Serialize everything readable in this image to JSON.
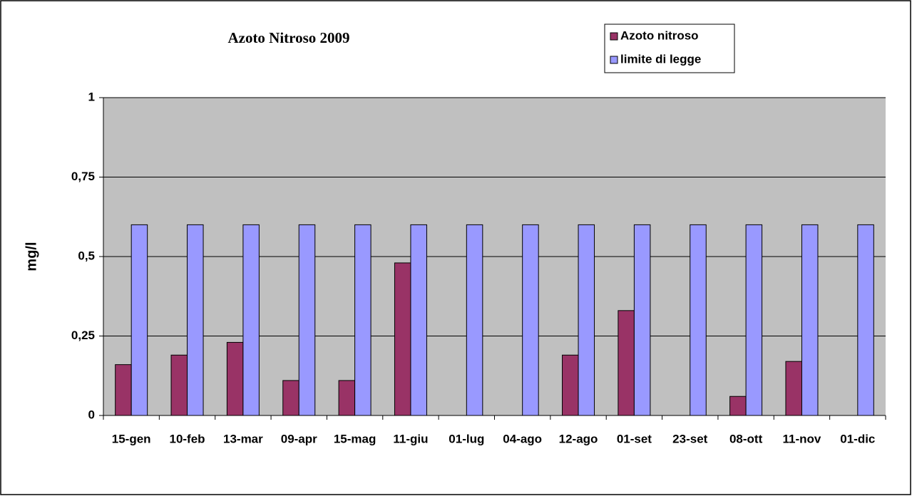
{
  "chart_data": {
    "type": "bar",
    "title": "Azoto Nitroso 2009",
    "y_label": "mg/l",
    "categories": [
      "15-gen",
      "10-feb",
      "13-mar",
      "09-apr",
      "15-mag",
      "11-giu",
      "01-lug",
      "04-ago",
      "12-ago",
      "01-set",
      "23-set",
      "08-ott",
      "11-nov",
      "01-dic"
    ],
    "series": [
      {
        "name": "Azoto nitroso",
        "color": "#993366",
        "values": [
          0.16,
          0.19,
          0.23,
          0.11,
          0.11,
          0.48,
          null,
          null,
          0.19,
          0.33,
          null,
          0.06,
          0.17,
          null
        ]
      },
      {
        "name": "limite di legge",
        "color": "#9999ff",
        "values": [
          0.6,
          0.6,
          0.6,
          0.6,
          0.6,
          0.6,
          0.6,
          0.6,
          0.6,
          0.6,
          0.6,
          0.6,
          0.6,
          0.6
        ]
      }
    ],
    "ylim": [
      0,
      1
    ],
    "yticks": [
      0,
      {
        "value": 0.25,
        "label": "0,25"
      },
      {
        "value": 0.5,
        "label": "0,5"
      },
      {
        "value": 0.75,
        "label": "0,75"
      },
      1
    ],
    "grid": true,
    "plot_background": "#c0c0c0",
    "legend": "top-right"
  }
}
